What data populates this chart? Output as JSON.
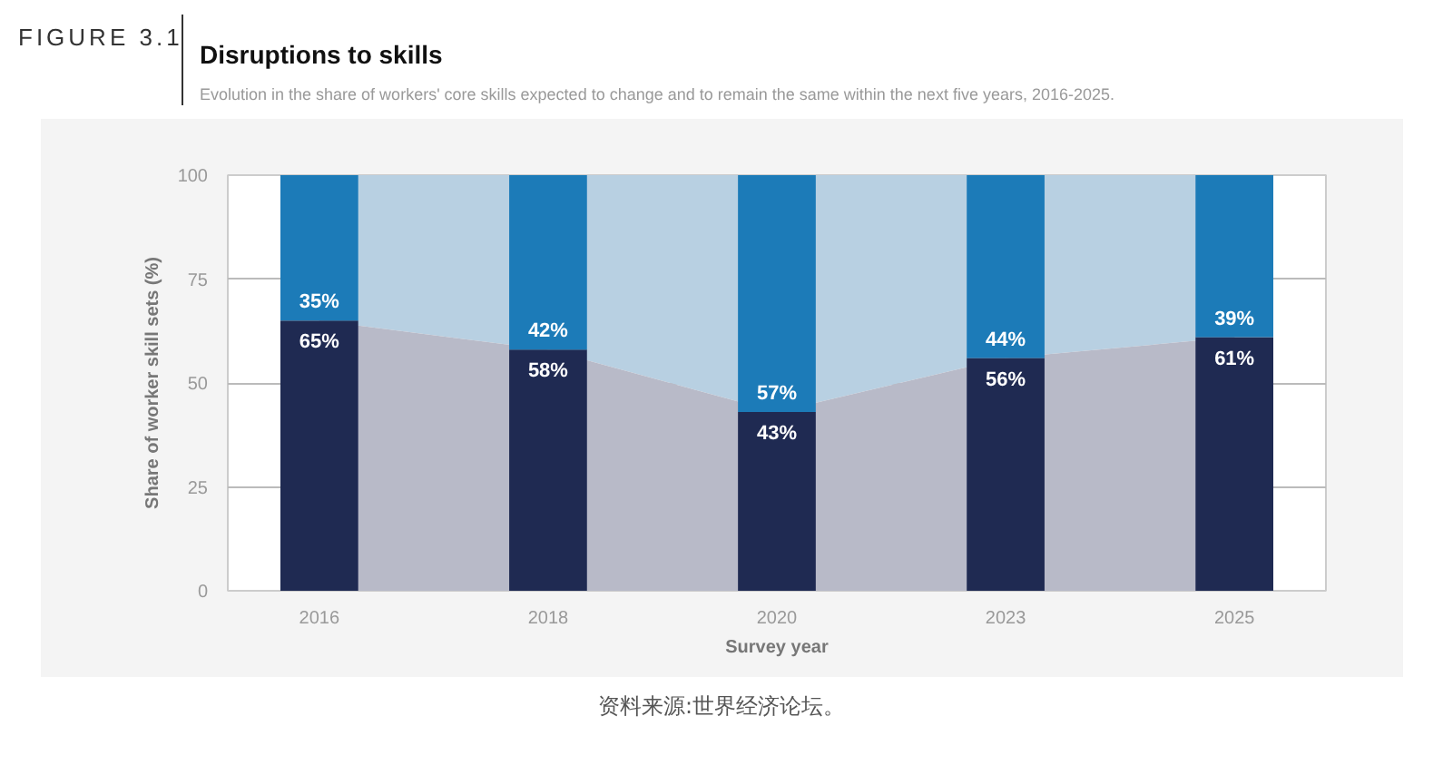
{
  "chart_data": {
    "type": "bar",
    "title": "Disruptions to skills",
    "subtitle": "Evolution in the share of workers' core skills expected to change and to remain the same within the next five years, 2016-2025.",
    "annotations": [
      "FIGURE 3.1",
      "资料来源:世界经济论坛。"
    ],
    "xlabel": "Survey year",
    "ylabel": "Share of worker skill sets (%)",
    "categories": [
      "2016",
      "2018",
      "2020",
      "2023",
      "2025"
    ],
    "stacked": true,
    "series": [
      {
        "type": "area",
        "color": "#b8d0e2",
        "values": [
          null,
          null,
          null,
          null,
          null
        ],
        "lower": [
          65,
          58,
          43,
          56,
          61
        ],
        "upper": [
          100,
          100,
          100,
          100,
          100
        ]
      },
      {
        "type": "area",
        "color": "#b8bac8",
        "values": [
          null,
          null,
          null,
          null,
          null
        ],
        "lower": [
          0,
          0,
          0,
          0,
          0
        ],
        "upper": [
          65,
          58,
          43,
          56,
          61
        ]
      },
      {
        "color": "#1f2a52",
        "values": [
          65,
          58,
          43,
          56,
          61
        ],
        "value_labels": [
          "65%",
          "58%",
          "43%",
          "56%",
          "61%"
        ]
      },
      {
        "color": "#1c7bb8",
        "values": [
          35,
          42,
          57,
          44,
          39
        ],
        "value_labels": [
          "35%",
          "42%",
          "57%",
          "44%",
          "39%"
        ]
      }
    ],
    "ylim": [
      0,
      100
    ],
    "yticks": [
      0,
      25,
      50,
      75,
      100
    ],
    "grid": "y"
  }
}
